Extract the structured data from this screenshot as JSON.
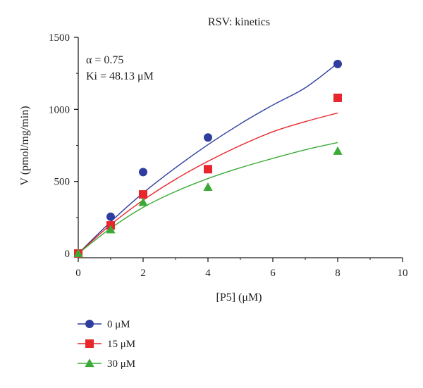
{
  "chart_data": {
    "type": "scatter",
    "title": "RSV: kinetics",
    "xlabel": "[P5] (μM)",
    "ylabel": "V (pmol/mg/min)",
    "xlim": [
      0,
      10
    ],
    "ylim": [
      0,
      1500
    ],
    "x_ticks": [
      0,
      2,
      4,
      6,
      8,
      10
    ],
    "y_ticks": [
      0,
      500,
      1000,
      1500
    ],
    "x_tick_labels": [
      "0",
      "2",
      "4",
      "6",
      "8",
      "10"
    ],
    "y_tick_labels": [
      "0",
      "500",
      "1000",
      "1500"
    ],
    "grid": false,
    "legend_position": "bottom-left",
    "annotations": [
      "α = 0.75",
      "Ki = 48.13 μM"
    ],
    "series": [
      {
        "name": "0 μM",
        "marker": "circle",
        "color": "#2e3d9e",
        "x": [
          0,
          1,
          2,
          4,
          8
        ],
        "y": [
          0,
          255,
          565,
          805,
          1315
        ],
        "fit": {
          "x": [
            0,
            1,
            2,
            3,
            4,
            5,
            6,
            7,
            8
          ],
          "y": [
            0,
            220,
            420,
            595,
            755,
            900,
            1030,
            1150,
            1320
          ]
        }
      },
      {
        "name": "15 μM",
        "marker": "square",
        "color": "#e8262b",
        "x": [
          0,
          1,
          2,
          4,
          8
        ],
        "y": [
          0,
          195,
          410,
          585,
          1080
        ],
        "fit": {
          "x": [
            0,
            1,
            2,
            3,
            4,
            5,
            6,
            7,
            8
          ],
          "y": [
            0,
            200,
            370,
            515,
            640,
            750,
            845,
            915,
            975
          ]
        }
      },
      {
        "name": "30 μM",
        "marker": "triangle",
        "color": "#3aaa35",
        "x": [
          0,
          1,
          2,
          4,
          8
        ],
        "y": [
          0,
          165,
          355,
          460,
          710
        ],
        "fit": {
          "x": [
            0,
            1,
            2,
            3,
            4,
            5,
            6,
            7,
            8
          ],
          "y": [
            0,
            175,
            320,
            430,
            520,
            595,
            660,
            720,
            770
          ]
        }
      }
    ]
  }
}
